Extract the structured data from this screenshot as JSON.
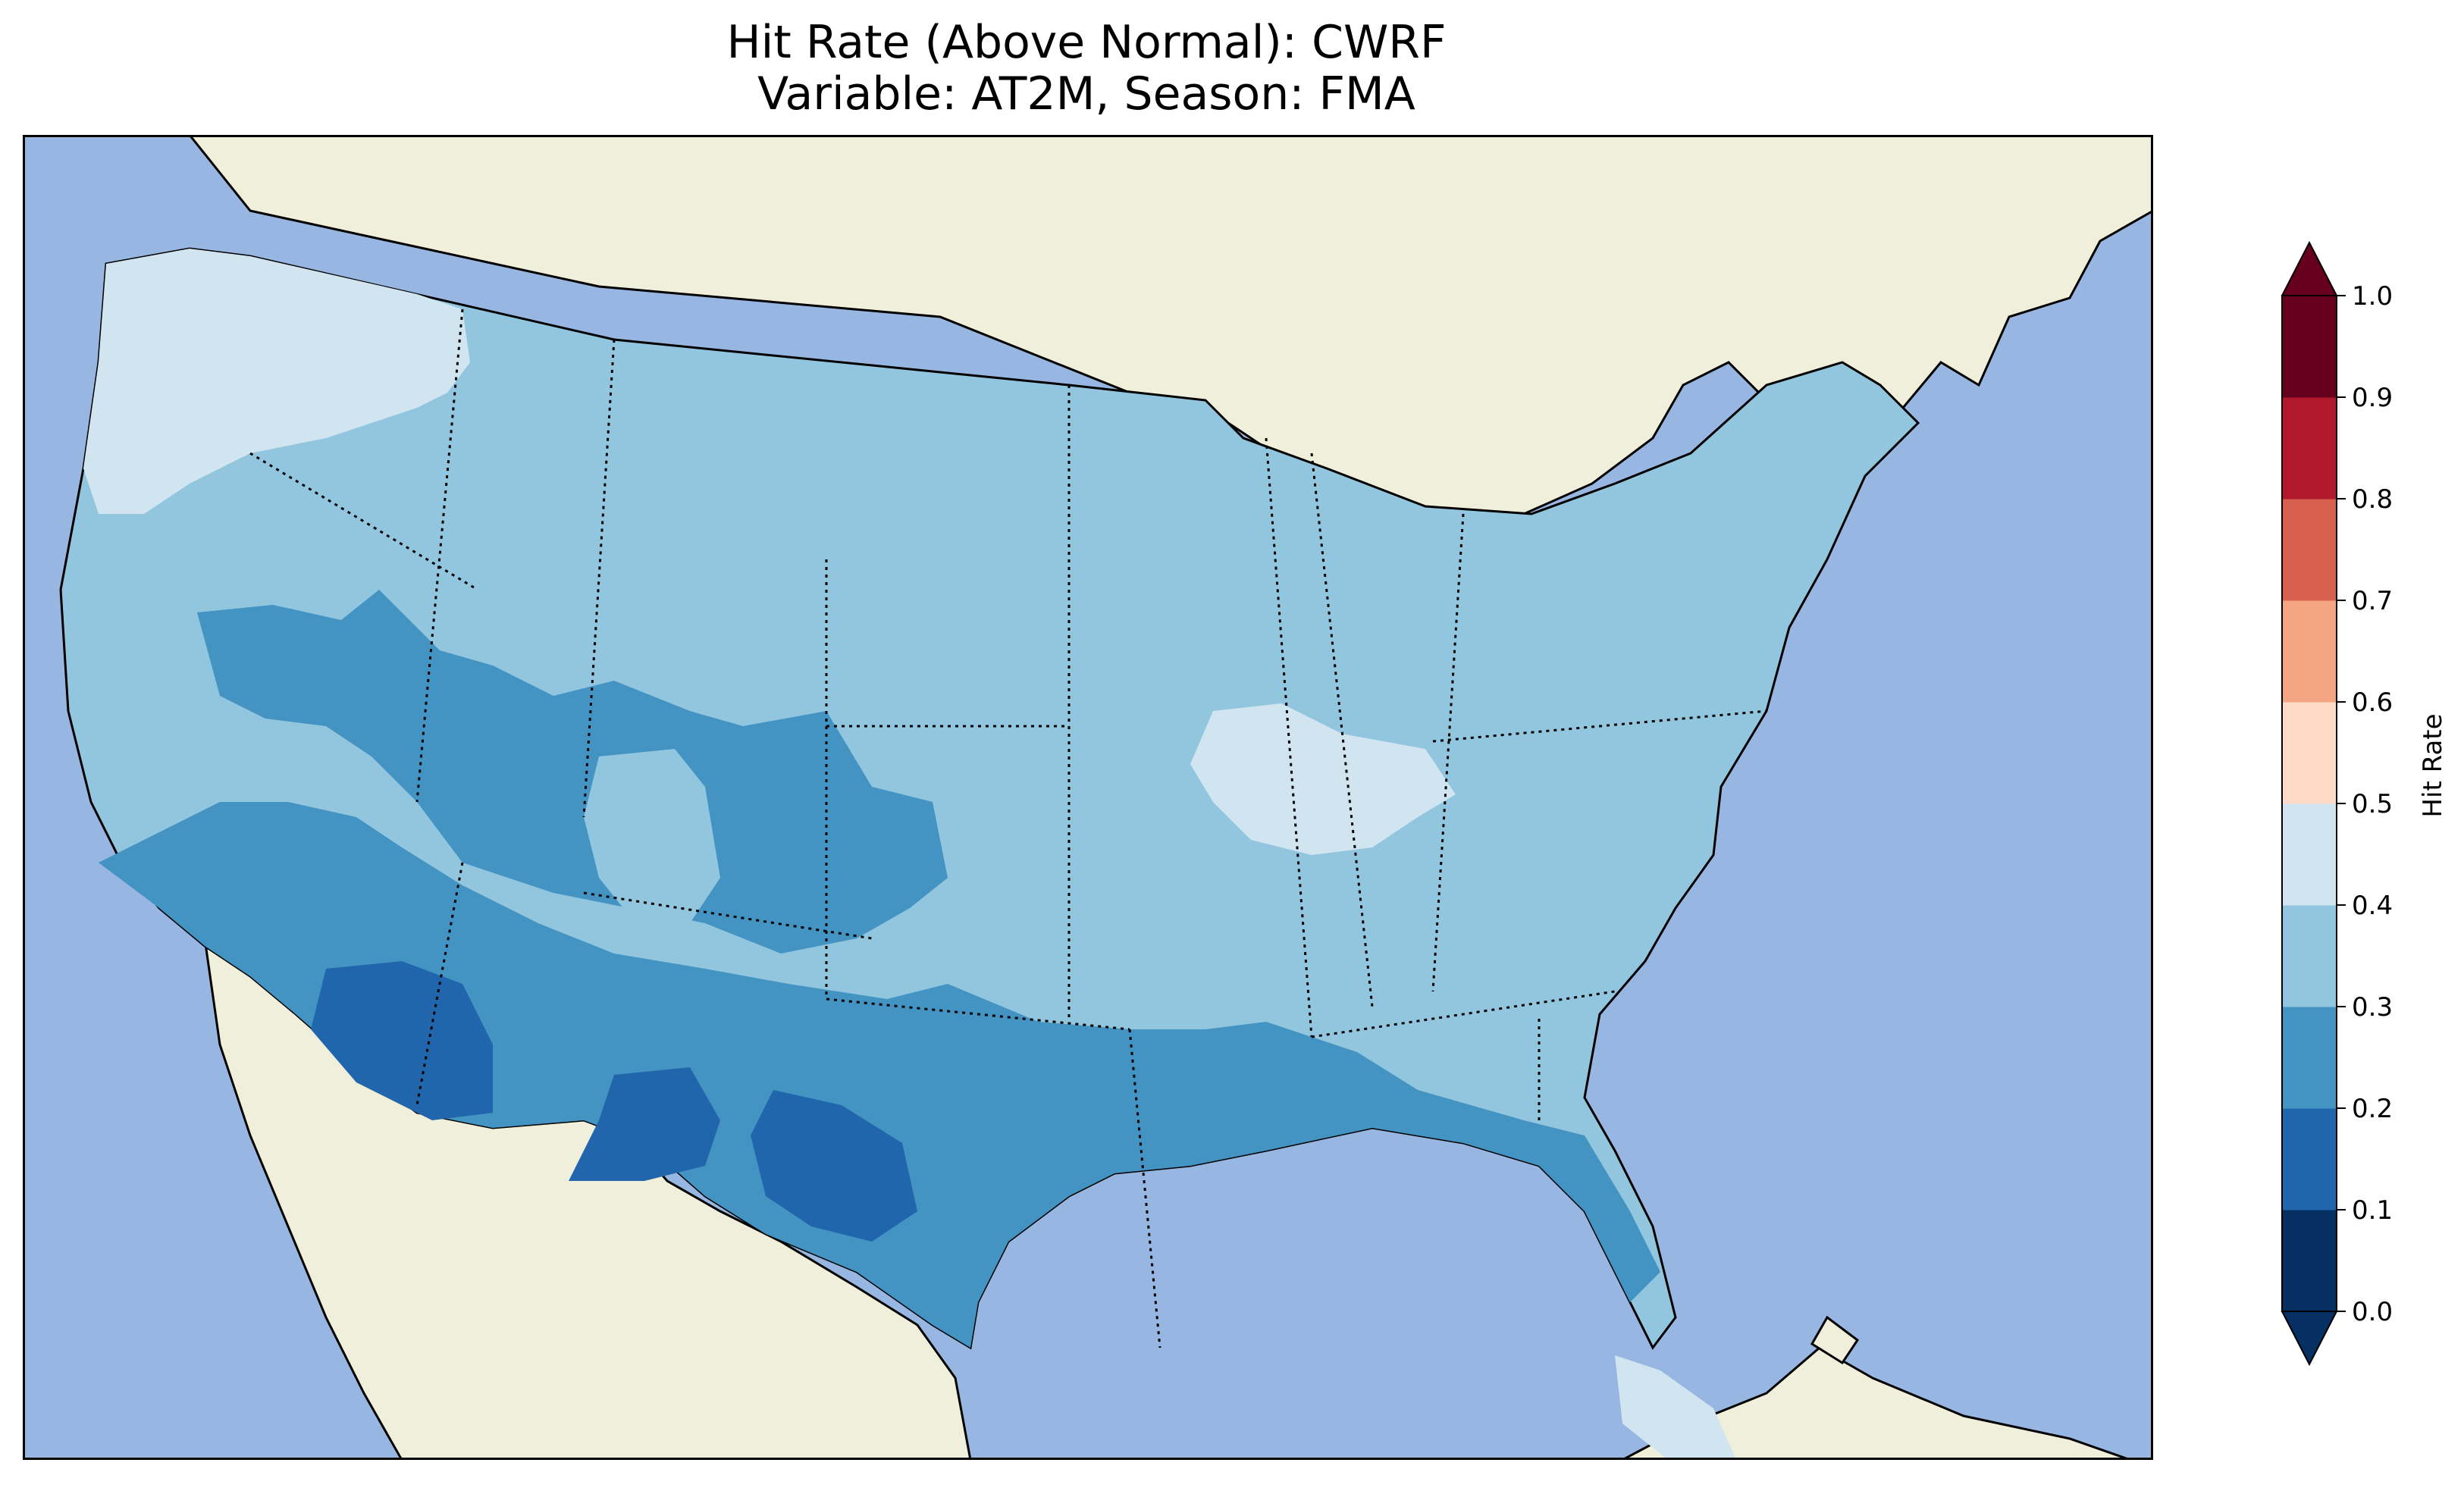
{
  "title": {
    "line1": "Hit Rate (Above Normal): CWRF",
    "line2": "Variable: AT2M, Season: FMA"
  },
  "map": {
    "region": "Contiguous United States",
    "colors": {
      "ocean": "#97b6e1",
      "land": "#efefdb",
      "coastline": "#000000",
      "borders": "#000000"
    }
  },
  "colorbar": {
    "label": "Hit Rate",
    "extend": "both",
    "ticks": [
      "0.0",
      "0.1",
      "0.2",
      "0.3",
      "0.4",
      "0.5",
      "0.6",
      "0.7",
      "0.8",
      "0.9",
      "1.0"
    ],
    "bins": [
      {
        "range": [
          0.0,
          0.1
        ],
        "color": "#053061"
      },
      {
        "range": [
          0.1,
          0.2
        ],
        "color": "#2166ac"
      },
      {
        "range": [
          0.2,
          0.3
        ],
        "color": "#4393c3"
      },
      {
        "range": [
          0.3,
          0.4
        ],
        "color": "#92c5de"
      },
      {
        "range": [
          0.4,
          0.5
        ],
        "color": "#d1e5f0"
      },
      {
        "range": [
          0.5,
          0.6
        ],
        "color": "#fddbc7"
      },
      {
        "range": [
          0.6,
          0.7
        ],
        "color": "#f4a582"
      },
      {
        "range": [
          0.7,
          0.8
        ],
        "color": "#d6604d"
      },
      {
        "range": [
          0.8,
          0.9
        ],
        "color": "#b2182b"
      },
      {
        "range": [
          0.9,
          1.0
        ],
        "color": "#67001f"
      }
    ]
  },
  "chart_data": {
    "type": "heatmap",
    "title": "Hit Rate (Above Normal): CWRF\nVariable: AT2M, Season: FMA",
    "colorbar_label": "Hit Rate",
    "value_range": [
      0.0,
      1.0
    ],
    "regions": [
      {
        "area": "Pacific Northwest / northern Rockies",
        "bin": [
          0.4,
          0.5
        ]
      },
      {
        "area": "Northern Plains, Great Lakes, Northeast",
        "bin": [
          0.3,
          0.4
        ]
      },
      {
        "area": "Iowa / Illinois",
        "bin": [
          0.4,
          0.5
        ]
      },
      {
        "area": "Southern Florida",
        "bin": [
          0.4,
          0.5
        ]
      },
      {
        "area": "Great Basin, Colorado, Texas, Gulf Coast",
        "bin": [
          0.2,
          0.3
        ]
      },
      {
        "area": "Arizona, southern New Mexico, west Texas",
        "bin": [
          0.1,
          0.2
        ]
      }
    ]
  }
}
